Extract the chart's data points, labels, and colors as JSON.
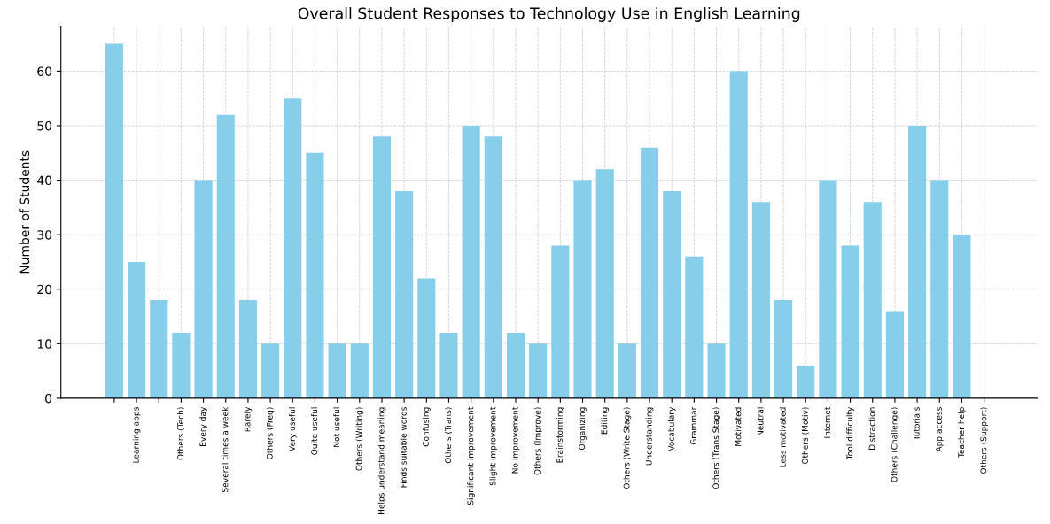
{
  "chart_data": {
    "type": "bar",
    "title": "Overall Student Responses to Technology Use in English Learning",
    "ylabel": "Number of Students",
    "categories": [
      null,
      "Learning apps",
      null,
      "Others (Tech)",
      "Every day",
      "Several times a week",
      "Rarely",
      "Others (Freq)",
      "Very useful",
      "Quite useful",
      "Not useful",
      "Others (Writing)",
      "Helps understand meaning",
      "Finds suitable words",
      "Confusing",
      "Others (Trans)",
      "Significant improvement",
      "Slight improvement",
      "No improvement",
      "Others (Improve)",
      "Brainstorming",
      "Organizing",
      "Editing",
      "Others (Write Stage)",
      "Understanding",
      "Vocabulary",
      "Grammar",
      "Others (Trans Stage)",
      "Motivated",
      "Neutral",
      "Less motivated",
      "Others (Motiv)",
      "Internet",
      "Tool difficulty",
      "Distraction",
      "Others (Challenge)",
      "Tutorials",
      "App access",
      "Teacher help",
      "Others (Support)"
    ],
    "values": [
      65,
      25,
      18,
      12,
      40,
      52,
      18,
      10,
      55,
      45,
      10,
      10,
      48,
      38,
      22,
      12,
      50,
      48,
      12,
      10,
      28,
      40,
      42,
      10,
      46,
      38,
      26,
      10,
      60,
      36,
      18,
      6,
      40,
      28,
      36,
      16,
      50,
      40,
      30,
      0
    ],
    "color": "#87ceeb",
    "ylim": [
      0,
      68.25
    ],
    "yticks": [
      0,
      10,
      20,
      30,
      40,
      50,
      60
    ],
    "grid": true
  }
}
